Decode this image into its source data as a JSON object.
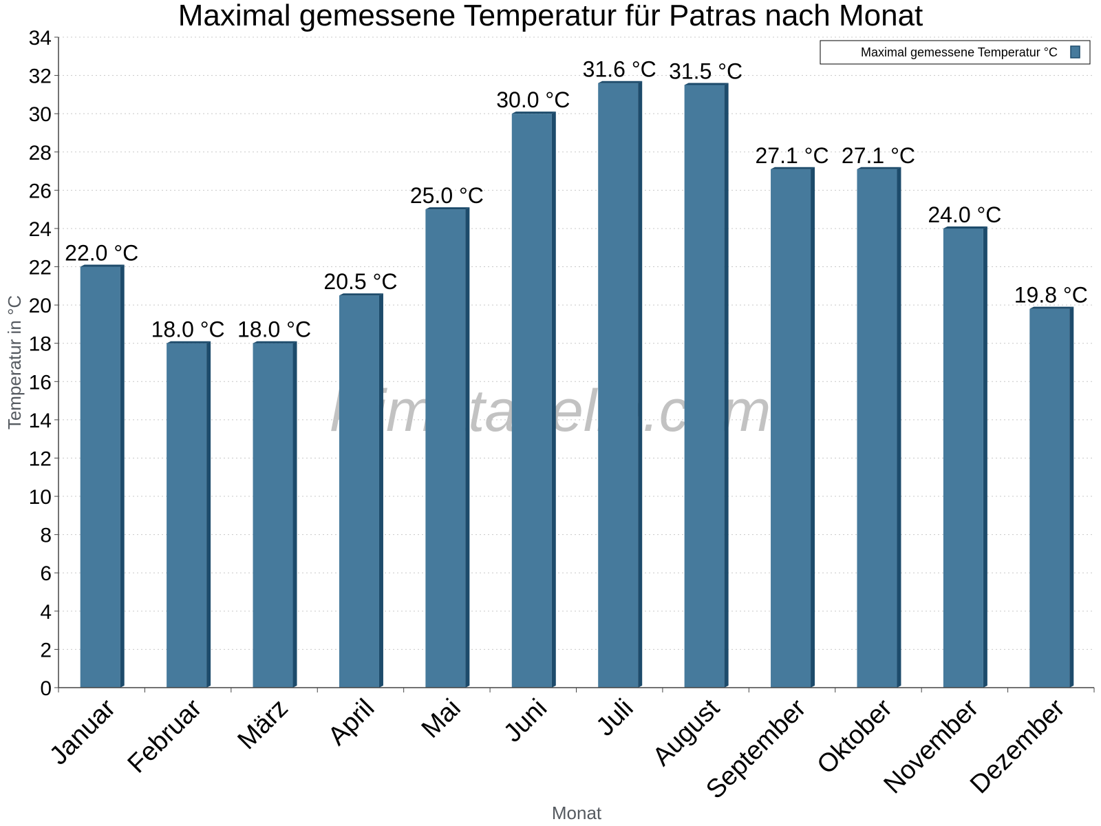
{
  "chart_data": {
    "type": "bar",
    "title": "Maximal gemessene Temperatur für Patras nach Monat",
    "xlabel": "Monat",
    "ylabel": "Temperatur in °C",
    "categories": [
      "Januar",
      "Februar",
      "März",
      "April",
      "Mai",
      "Juni",
      "Juli",
      "August",
      "September",
      "Oktober",
      "November",
      "Dezember"
    ],
    "series": [
      {
        "name": "Maximal gemessene Temperatur °C",
        "values": [
          22.0,
          18.0,
          18.0,
          20.5,
          25.0,
          30.0,
          31.6,
          31.5,
          27.1,
          27.1,
          24.0,
          19.8
        ],
        "color": "#467a9c"
      }
    ],
    "data_labels": [
      "22.0 °C",
      "18.0 °C",
      "18.0 °C",
      "20.5 °C",
      "25.0 °C",
      "30.0 °C",
      "31.6 °C",
      "31.5 °C",
      "27.1 °C",
      "27.1 °C",
      "24.0 °C",
      "19.8 °C"
    ],
    "y_ticks": [
      0,
      2,
      4,
      6,
      8,
      10,
      12,
      14,
      16,
      18,
      20,
      22,
      24,
      26,
      28,
      30,
      32,
      34
    ],
    "ylim": [
      0,
      34
    ],
    "grid": true,
    "legend_position": "top-right",
    "watermark": "klimatabelle.com"
  },
  "colors": {
    "bar_front": "#467a9c",
    "bar_side": "#1d4b6b",
    "bar_top": "#1d4b6b"
  }
}
